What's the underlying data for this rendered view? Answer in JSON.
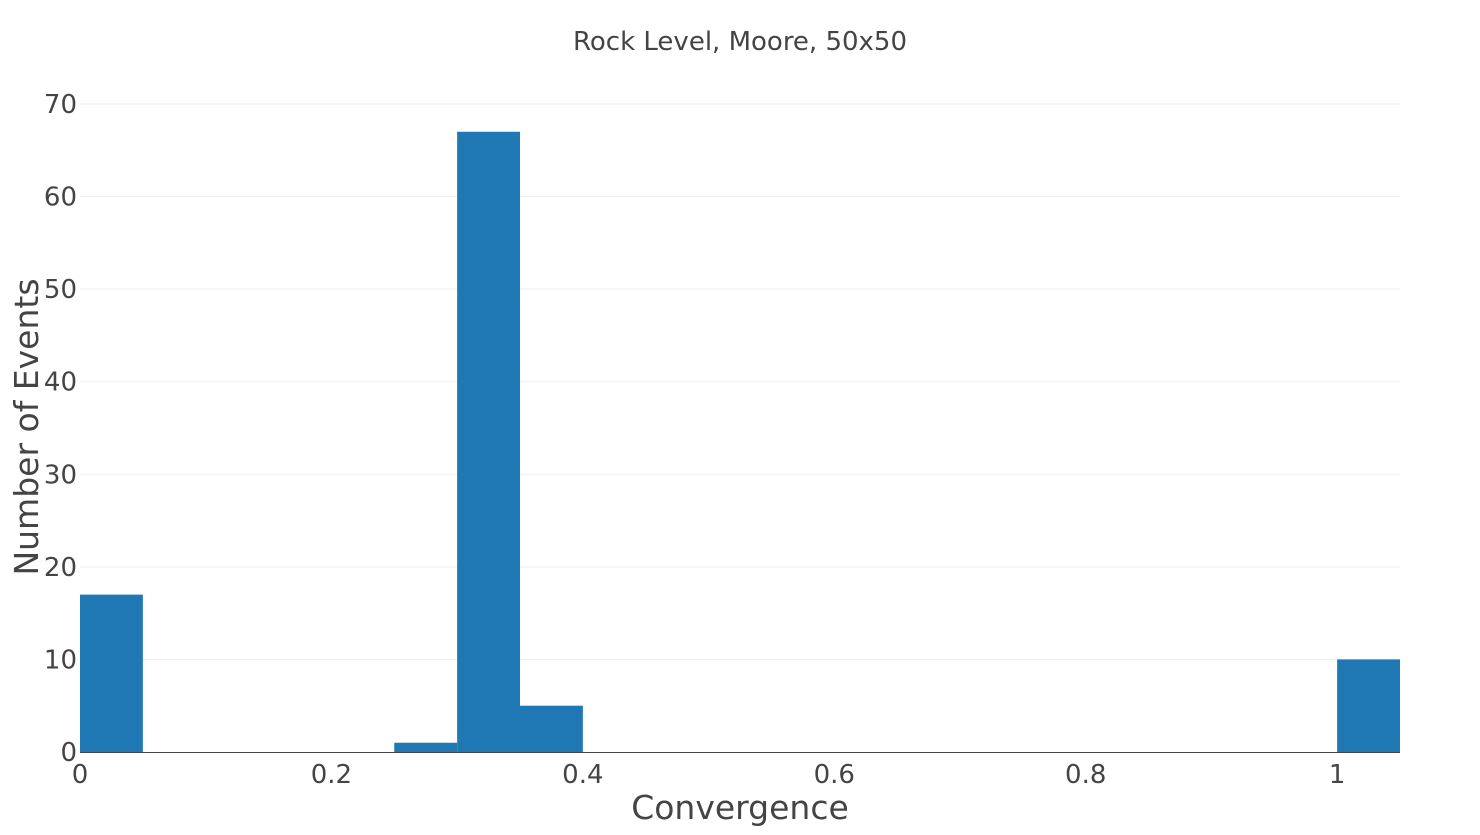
{
  "chart_data": {
    "type": "bar",
    "title": "Rock Level, Moore, 50x50",
    "xlabel": "Convergence",
    "ylabel": "Number of Events",
    "xlim": [
      0,
      1.05
    ],
    "ylim": [
      0,
      70
    ],
    "bin_width": 0.05,
    "x_ticks": [
      0,
      0.2,
      0.4,
      0.6,
      0.8,
      1
    ],
    "x_tick_labels": [
      "0",
      "0.2",
      "0.4",
      "0.6",
      "0.8",
      "1"
    ],
    "y_ticks": [
      0,
      10,
      20,
      30,
      40,
      50,
      60,
      70
    ],
    "y_tick_labels": [
      "0",
      "10",
      "20",
      "30",
      "40",
      "50",
      "60",
      "70"
    ],
    "bins": [
      {
        "start": 0.0,
        "end": 0.05,
        "value": 17
      },
      {
        "start": 0.25,
        "end": 0.3,
        "value": 1
      },
      {
        "start": 0.3,
        "end": 0.35,
        "value": 67
      },
      {
        "start": 0.35,
        "end": 0.4,
        "value": 5
      },
      {
        "start": 1.0,
        "end": 1.05,
        "value": 10
      }
    ],
    "grid": true,
    "legend": "none",
    "bar_color": "#1f77b4"
  }
}
